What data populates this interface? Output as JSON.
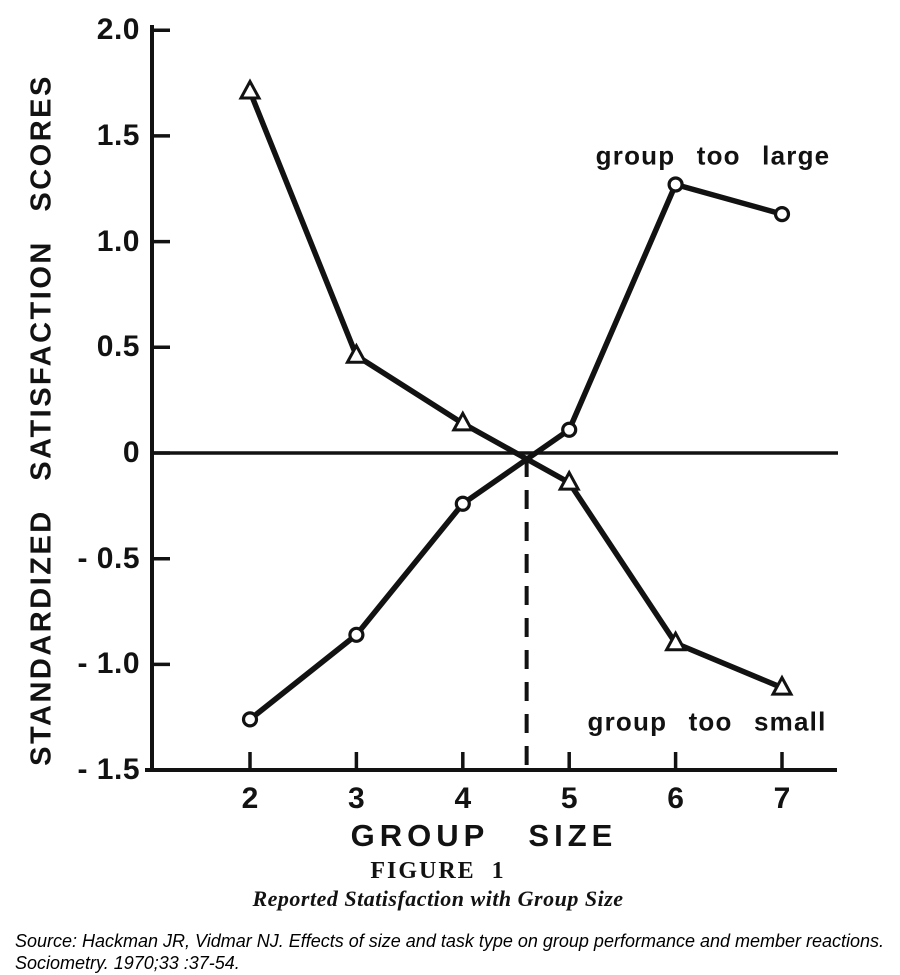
{
  "colors": {
    "ink": "#121212",
    "background": "#ffffff",
    "marker_fill": "#ffffff"
  },
  "chart_data": {
    "type": "line",
    "title": "FIGURE 1",
    "subtitle": "Reported Statisfaction with Group Size",
    "xlabel": "GROUP SIZE",
    "ylabel": "STANDARDIZED SATISFACTION SCORES",
    "x": [
      2,
      3,
      4,
      5,
      6,
      7
    ],
    "series": [
      {
        "name": "group too small",
        "marker": "triangle",
        "values": [
          1.71,
          0.46,
          0.14,
          -0.14,
          -0.9,
          -1.11
        ]
      },
      {
        "name": "group too large",
        "marker": "circle",
        "values": [
          -1.26,
          -0.86,
          -0.24,
          0.11,
          1.27,
          1.13
        ]
      }
    ],
    "xlim": [
      2,
      7
    ],
    "ylim": [
      -1.5,
      2.0
    ],
    "xticks": [
      2,
      3,
      4,
      5,
      6,
      7
    ],
    "xtick_labels": [
      "2",
      "3",
      "4",
      "5",
      "6",
      "7"
    ],
    "yticks": [
      2.0,
      1.5,
      1.0,
      0.5,
      0,
      -0.5,
      -1.0,
      -1.5
    ],
    "ytick_labels": [
      "2.0",
      "1.5",
      "1.0",
      "0.5",
      "0",
      "- 0.5",
      "- 1.0",
      "- 1.5"
    ],
    "grid": false,
    "zero_line": true,
    "dashed_vline_x": 4.6,
    "legend_position": "inline-annotations",
    "annotations": {
      "large": "group too large",
      "small": "group too small"
    }
  },
  "source": {
    "line1": "Source: Hackman JR, Vidmar NJ. Effects of size and task type on group performance and member reactions.",
    "line2": "Sociometry. 1970;33 :37-54."
  }
}
